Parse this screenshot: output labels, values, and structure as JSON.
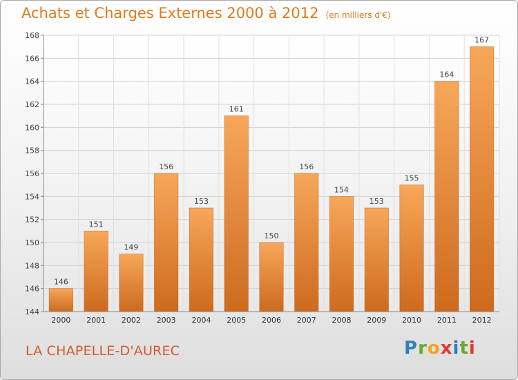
{
  "title": "Achats et Charges Externes 2000 à 2012",
  "subtitle": "(en milliers d'€)",
  "location": "LA CHAPELLE-D'AUREC",
  "logo": {
    "letters": [
      "P",
      "r",
      "o",
      "x",
      "i",
      "t",
      "i"
    ],
    "colors": [
      "#2f7fc1",
      "#6aab2e",
      "#f2a51f",
      "#e23b2c",
      "#2f7fc1",
      "#6aab2e",
      "#e23b2c"
    ]
  },
  "colors": {
    "bar_top": "#f7a759",
    "bar_bottom": "#cd6a1e",
    "title": "#e07a1c",
    "axis": "#888888"
  },
  "chart_data": {
    "type": "bar",
    "categories": [
      "2000",
      "2001",
      "2002",
      "2003",
      "2004",
      "2005",
      "2006",
      "2007",
      "2008",
      "2009",
      "2010",
      "2011",
      "2012"
    ],
    "values": [
      146,
      151,
      149,
      156,
      153,
      161,
      150,
      156,
      154,
      153,
      155,
      164,
      167
    ],
    "ylim": [
      144,
      168
    ],
    "yticks": [
      144,
      146,
      148,
      150,
      152,
      154,
      156,
      158,
      160,
      162,
      164,
      166,
      168
    ],
    "grid": true,
    "xlabel": "",
    "ylabel": ""
  }
}
